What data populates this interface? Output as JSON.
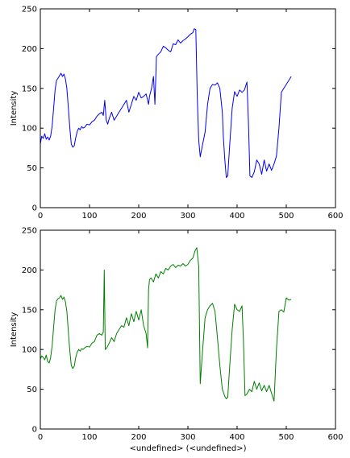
{
  "chart_data": [
    {
      "type": "line",
      "title": "",
      "xlabel": "",
      "ylabel": "Intensity",
      "xlim": [
        0,
        600
      ],
      "ylim": [
        0,
        250
      ],
      "xticks": [
        0,
        100,
        200,
        300,
        400,
        500,
        600
      ],
      "yticks": [
        0,
        50,
        100,
        150,
        200,
        250
      ],
      "grid": false,
      "series": [
        {
          "color": "#0000ff",
          "x": [
            0,
            3,
            6,
            9,
            12,
            15,
            18,
            21,
            24,
            27,
            30,
            33,
            36,
            39,
            42,
            45,
            48,
            51,
            54,
            57,
            60,
            63,
            66,
            69,
            72,
            75,
            78,
            81,
            84,
            87,
            90,
            95,
            100,
            105,
            110,
            115,
            120,
            125,
            128,
            131,
            134,
            137,
            140,
            145,
            150,
            155,
            160,
            165,
            170,
            175,
            180,
            185,
            190,
            195,
            200,
            205,
            210,
            215,
            220,
            222,
            226,
            230,
            233,
            236,
            240,
            245,
            250,
            255,
            260,
            265,
            270,
            275,
            280,
            285,
            290,
            295,
            300,
            305,
            310,
            313,
            316,
            319,
            322,
            325,
            330,
            335,
            340,
            345,
            350,
            355,
            360,
            365,
            370,
            372,
            375,
            378,
            381,
            385,
            390,
            395,
            400,
            405,
            410,
            415,
            420,
            423,
            426,
            430,
            435,
            440,
            445,
            450,
            455,
            460,
            465,
            470,
            475,
            480,
            485,
            490,
            495,
            500,
            505,
            510
          ],
          "y": [
            80,
            90,
            87,
            93,
            86,
            89,
            85,
            90,
            102,
            125,
            148,
            160,
            163,
            166,
            169,
            165,
            168,
            162,
            150,
            125,
            100,
            80,
            76,
            78,
            88,
            96,
            100,
            98,
            102,
            100,
            101,
            105,
            104,
            108,
            110,
            115,
            118,
            120,
            116,
            135,
            110,
            105,
            112,
            120,
            110,
            115,
            120,
            125,
            130,
            135,
            120,
            130,
            140,
            135,
            145,
            138,
            140,
            143,
            130,
            140,
            150,
            165,
            130,
            190,
            193,
            196,
            203,
            201,
            198,
            196,
            206,
            205,
            211,
            207,
            210,
            212,
            215,
            218,
            220,
            225,
            224,
            140,
            85,
            64,
            80,
            95,
            130,
            150,
            155,
            154,
            157,
            150,
            120,
            90,
            60,
            38,
            40,
            80,
            125,
            146,
            140,
            148,
            145,
            148,
            158,
            110,
            40,
            38,
            45,
            60,
            55,
            42,
            60,
            46,
            55,
            47,
            55,
            65,
            100,
            145,
            150,
            155,
            160,
            165
          ]
        }
      ]
    },
    {
      "type": "line",
      "title": "",
      "xlabel": "<undefined> (<undefined>)",
      "ylabel": "Intensity",
      "xlim": [
        0,
        600
      ],
      "ylim": [
        0,
        250
      ],
      "xticks": [
        0,
        100,
        200,
        300,
        400,
        500,
        600
      ],
      "yticks": [
        0,
        50,
        100,
        150,
        200,
        250
      ],
      "grid": false,
      "series": [
        {
          "color": "#008000",
          "x": [
            0,
            3,
            6,
            9,
            12,
            15,
            18,
            21,
            24,
            27,
            30,
            33,
            36,
            39,
            42,
            45,
            48,
            51,
            54,
            57,
            60,
            63,
            66,
            69,
            72,
            75,
            78,
            81,
            84,
            87,
            90,
            95,
            100,
            105,
            110,
            115,
            120,
            125,
            128,
            130,
            132,
            135,
            140,
            145,
            150,
            155,
            160,
            165,
            170,
            175,
            180,
            185,
            190,
            195,
            200,
            205,
            210,
            215,
            218,
            220,
            222,
            225,
            230,
            235,
            240,
            245,
            250,
            255,
            260,
            265,
            270,
            275,
            280,
            285,
            290,
            295,
            300,
            305,
            310,
            315,
            318,
            322,
            325,
            330,
            335,
            340,
            345,
            350,
            355,
            360,
            365,
            370,
            375,
            378,
            381,
            385,
            390,
            395,
            400,
            405,
            410,
            413,
            416,
            420,
            425,
            430,
            435,
            440,
            445,
            450,
            455,
            460,
            465,
            470,
            475,
            480,
            485,
            490,
            495,
            500,
            505,
            510
          ],
          "y": [
            88,
            92,
            90,
            87,
            93,
            85,
            83,
            90,
            104,
            128,
            150,
            161,
            164,
            165,
            168,
            163,
            166,
            160,
            148,
            122,
            98,
            80,
            76,
            79,
            90,
            97,
            100,
            98,
            101,
            100,
            102,
            104,
            103,
            108,
            110,
            118,
            120,
            118,
            122,
            200,
            100,
            102,
            108,
            115,
            110,
            120,
            125,
            130,
            128,
            140,
            130,
            145,
            135,
            148,
            137,
            150,
            130,
            120,
            102,
            175,
            188,
            190,
            185,
            195,
            190,
            198,
            195,
            202,
            200,
            205,
            207,
            203,
            206,
            205,
            208,
            205,
            207,
            212,
            215,
            225,
            228,
            205,
            57,
            100,
            140,
            150,
            155,
            158,
            148,
            115,
            80,
            50,
            41,
            38,
            40,
            80,
            125,
            157,
            150,
            148,
            155,
            110,
            42,
            44,
            50,
            47,
            60,
            50,
            58,
            48,
            55,
            47,
            55,
            45,
            35,
            100,
            148,
            150,
            147,
            165,
            162,
            163
          ]
        }
      ]
    }
  ]
}
